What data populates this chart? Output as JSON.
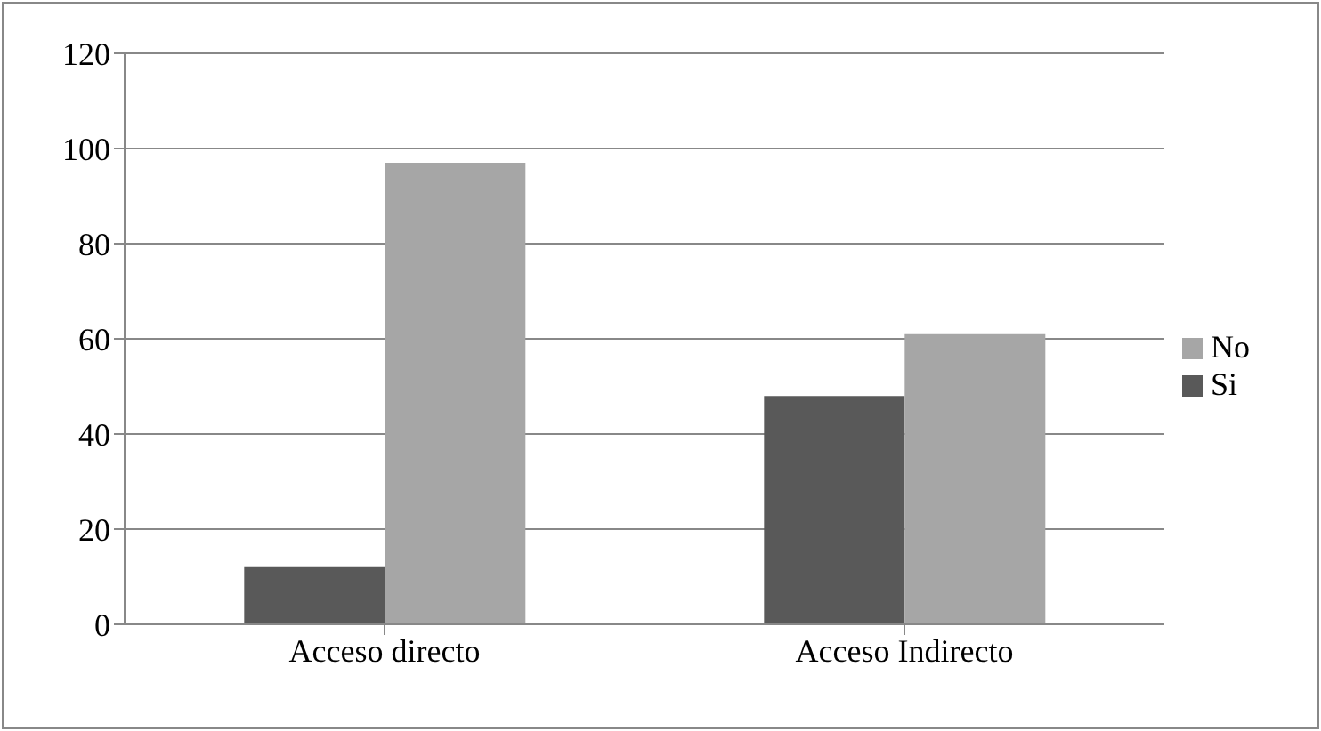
{
  "chart_data": {
    "type": "bar",
    "categories": [
      "Acceso directo",
      "Acceso Indirecto"
    ],
    "series": [
      {
        "name": "Si",
        "color": "#595959",
        "values": [
          12,
          48
        ]
      },
      {
        "name": "No",
        "color": "#a6a6a6",
        "values": [
          97,
          61
        ]
      }
    ],
    "ylim": [
      0,
      120
    ],
    "yticks": [
      0,
      20,
      40,
      60,
      80,
      100,
      120
    ],
    "grid": "y",
    "legend": "right"
  }
}
